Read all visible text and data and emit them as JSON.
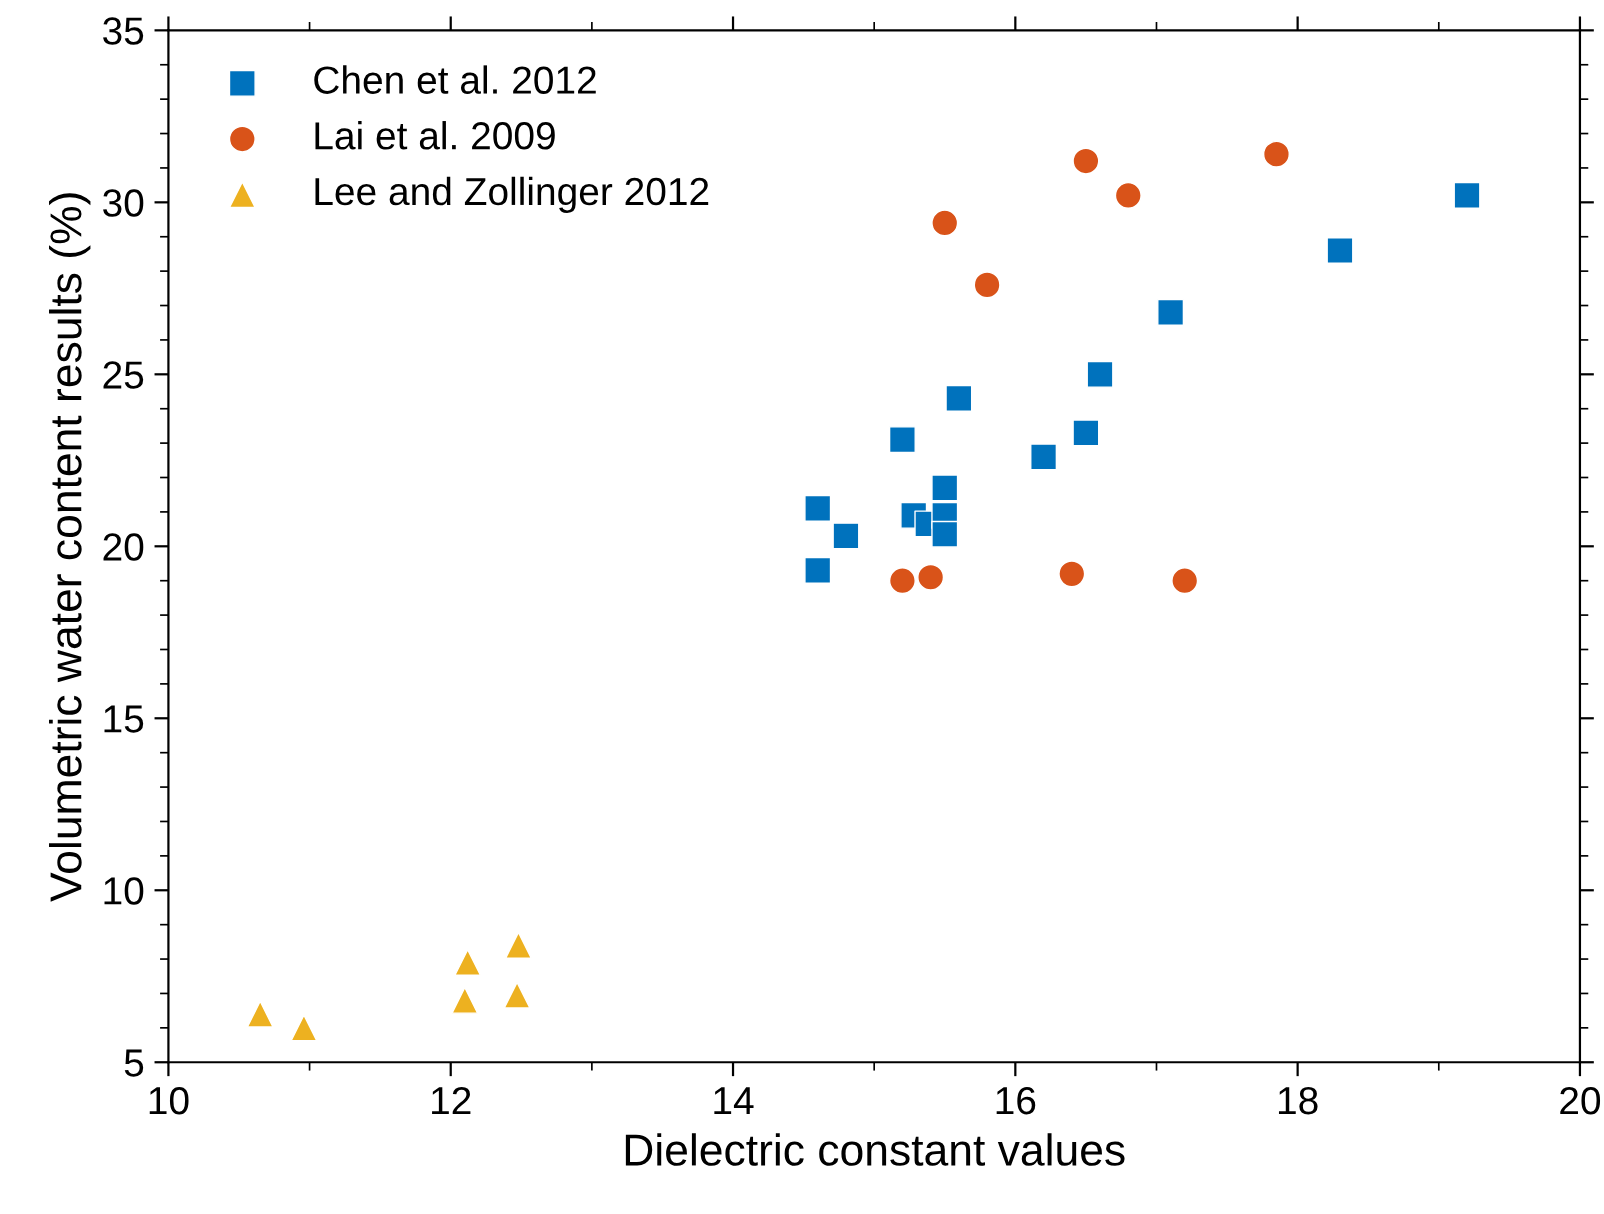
{
  "chart_data": {
    "type": "scatter",
    "xlabel": "Dielectric constant values",
    "ylabel": "Volumetric water content results (%)",
    "xlim": [
      10,
      20
    ],
    "xticks": [
      10,
      12,
      14,
      16,
      18,
      20
    ],
    "ylim": [
      5,
      35
    ],
    "yticks": [
      5,
      10,
      15,
      20,
      25,
      30,
      35
    ],
    "grid": false,
    "legend": "top left",
    "series": [
      {
        "name": "Chen et al. 2012",
        "color": "#0072bd",
        "marker": "square",
        "x": [
          14.6,
          14.6,
          14.8,
          15.2,
          15.28,
          15.38,
          15.5,
          15.5,
          15.5,
          15.6,
          16.2,
          16.5,
          16.6,
          17.1,
          18.3,
          19.2
        ],
        "values": [
          21.1,
          19.3,
          20.3,
          23.1,
          20.9,
          20.65,
          20.9,
          20.35,
          21.7,
          24.3,
          22.6,
          23.3,
          25.0,
          26.8,
          28.6,
          30.2
        ]
      },
      {
        "name": "Lai et al. 2009",
        "color": "#d95319",
        "marker": "circle",
        "x": [
          15.2,
          15.4,
          15.5,
          15.8,
          16.4,
          16.5,
          16.8,
          17.2,
          17.85
        ],
        "values": [
          19.0,
          19.1,
          29.4,
          27.6,
          19.2,
          31.2,
          30.2,
          19.0,
          31.4
        ]
      },
      {
        "name": "Lee and Zollinger 2012",
        "color": "#edb120",
        "marker": "triangle",
        "x": [
          10.65,
          10.96,
          12.1,
          12.12,
          12.47,
          12.48
        ],
        "values": [
          6.4,
          6.0,
          6.8,
          7.9,
          6.95,
          8.4
        ]
      }
    ]
  }
}
